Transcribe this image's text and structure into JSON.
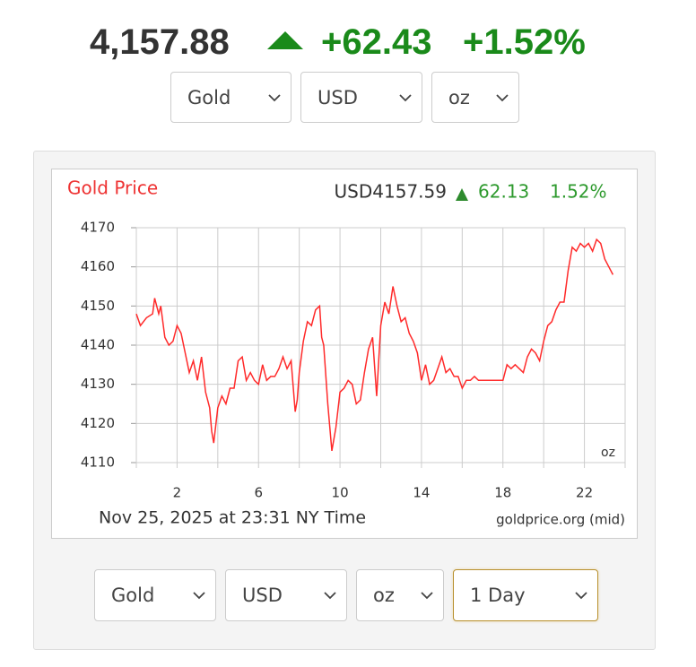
{
  "header": {
    "price": "4,157.88",
    "change": "+62.43",
    "change_pct": "+1.52%"
  },
  "selects_top": [
    "Gold",
    "USD",
    "oz"
  ],
  "chart_data": {
    "type": "line",
    "title": "Gold Price",
    "quote": "USD4157.59",
    "quote_change": "62.13",
    "quote_pct": "1.52%",
    "unit_label": "oz",
    "timestamp": "Nov 25, 2025 at 23:31 NY Time",
    "source": "goldprice.org (mid)",
    "color": "#ff2a2a",
    "grid": true,
    "xlim": [
      0,
      24
    ],
    "ylim": [
      4110,
      4170
    ],
    "xticks": [
      2,
      6,
      10,
      14,
      18,
      22
    ],
    "xgrid": [
      0,
      2,
      4,
      6,
      8,
      10,
      12,
      14,
      16,
      18,
      20,
      22,
      24
    ],
    "yticks": [
      4110,
      4120,
      4130,
      4140,
      4150,
      4160,
      4170
    ],
    "x": [
      0.0,
      0.2,
      0.5,
      0.8,
      0.9,
      1.1,
      1.2,
      1.4,
      1.6,
      1.8,
      2.0,
      2.2,
      2.4,
      2.6,
      2.8,
      3.0,
      3.2,
      3.4,
      3.6,
      3.7,
      3.8,
      4.0,
      4.2,
      4.4,
      4.6,
      4.8,
      5.0,
      5.2,
      5.4,
      5.6,
      5.8,
      6.0,
      6.2,
      6.4,
      6.6,
      6.8,
      7.0,
      7.2,
      7.4,
      7.6,
      7.8,
      7.9,
      8.0,
      8.2,
      8.4,
      8.6,
      8.8,
      9.0,
      9.1,
      9.2,
      9.4,
      9.6,
      9.8,
      10.0,
      10.2,
      10.4,
      10.6,
      10.8,
      11.0,
      11.2,
      11.4,
      11.6,
      11.8,
      12.0,
      12.2,
      12.4,
      12.6,
      12.8,
      13.0,
      13.2,
      13.4,
      13.6,
      13.8,
      14.0,
      14.2,
      14.4,
      14.6,
      14.8,
      15.0,
      15.2,
      15.4,
      15.6,
      15.8,
      16.0,
      16.2,
      16.4,
      16.6,
      16.8,
      17.0,
      17.5,
      18.0,
      18.2,
      18.4,
      18.6,
      18.8,
      19.0,
      19.2,
      19.4,
      19.6,
      19.8,
      20.0,
      20.2,
      20.4,
      20.6,
      20.8,
      21.0,
      21.2,
      21.4,
      21.6,
      21.8,
      22.0,
      22.2,
      22.4,
      22.6,
      22.8,
      23.0,
      23.2,
      23.4
    ],
    "values": [
      4148,
      4145,
      4147,
      4148,
      4152,
      4148,
      4150,
      4142,
      4140,
      4141,
      4145,
      4143,
      4138,
      4133,
      4136,
      4131,
      4137,
      4128,
      4124,
      4118,
      4115,
      4124,
      4127,
      4125,
      4129,
      4129,
      4136,
      4137,
      4131,
      4133,
      4131,
      4130,
      4135,
      4131,
      4132,
      4132,
      4134,
      4137,
      4134,
      4136,
      4123,
      4126,
      4133,
      4141,
      4146,
      4145,
      4149,
      4150,
      4142,
      4140,
      4125,
      4113,
      4119,
      4128,
      4129,
      4131,
      4130,
      4125,
      4126,
      4133,
      4139,
      4142,
      4127,
      4145,
      4151,
      4148,
      4155,
      4150,
      4146,
      4147,
      4143,
      4141,
      4138,
      4131,
      4135,
      4130,
      4131,
      4134,
      4137,
      4133,
      4134,
      4132,
      4132,
      4129,
      4131,
      4131,
      4132,
      4131,
      4131,
      4131,
      4131,
      4135,
      4134,
      4135,
      4134,
      4133,
      4137,
      4139,
      4138,
      4136,
      4141,
      4145,
      4146,
      4149,
      4151,
      4151,
      4159,
      4165,
      4164,
      4166,
      4165,
      4166,
      4164,
      4167,
      4166,
      4162,
      4160,
      4158
    ]
  },
  "selects_bottom": [
    "Gold",
    "USD",
    "oz",
    "1 Day"
  ]
}
